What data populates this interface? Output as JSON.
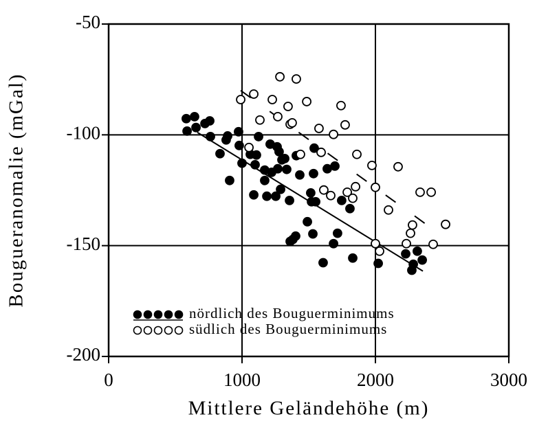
{
  "chart_data": {
    "type": "scatter",
    "x_label": "Mittlere Geländehöhe (m)",
    "y_label": "Bougueranomalie (mGal)",
    "xlim": [
      0,
      3000
    ],
    "xticks": [
      0,
      1000,
      2000,
      3000
    ],
    "ylim": [
      -200,
      -50
    ],
    "yticks": [
      -200,
      -150,
      -100,
      -50
    ],
    "grid": true,
    "legend": "lower left",
    "series": [
      {
        "name": "nördlich des Bouguerminimums",
        "color": "#000000",
        "marker": "filled",
        "x": [
          582,
          644,
          588,
          655,
          722,
          758,
          763,
          835,
          881,
          892,
          907,
          974,
          979,
          1000,
          1062,
          1088,
          1098,
          1108,
          1124,
          1170,
          1170,
          1186,
          1211,
          1222,
          1253,
          1278,
          1268,
          1289,
          1263,
          1299,
          1320,
          1335,
          1356,
          1361,
          1381,
          1402,
          1407,
          1490,
          1515,
          1531,
          1521,
          1541,
          1552,
          1608,
          1639,
          1686,
          1696,
          1716,
          1747,
          1809,
          1830,
          2021,
          2227,
          2273,
          2284,
          2314,
          2351,
          1433,
          1536
        ],
        "values": [
          -92.7,
          -91.8,
          -98.3,
          -96.7,
          -94.9,
          -93.7,
          -100.8,
          -108.5,
          -102.3,
          -100.5,
          -120.6,
          -98.6,
          -104.8,
          -112.8,
          -108.8,
          -127.1,
          -113.5,
          -109.1,
          -100.8,
          -120.6,
          -115.9,
          -127.7,
          -104.2,
          -116.9,
          -127.7,
          -107.6,
          -115.3,
          -124.6,
          -105.4,
          -111.3,
          -110.7,
          -115.6,
          -129.6,
          -148.1,
          -147.2,
          -145.7,
          -109.4,
          -139.2,
          -126.2,
          -144.7,
          -130.2,
          -106.0,
          -130.2,
          -157.7,
          -115.3,
          -149.1,
          -114.1,
          -144.4,
          -129.6,
          -133.3,
          -155.6,
          -158.0,
          -153.7,
          -161.1,
          -158.4,
          -152.5,
          -156.5,
          -118.1,
          -117.5
        ]
      },
      {
        "name": "südlich des Bouguerminimums",
        "color": "#000000",
        "marker": "open",
        "x": [
          990,
          1088,
          1134,
          1052,
          1227,
          1284,
          1407,
          1268,
          1345,
          1361,
          1376,
          1485,
          1438,
          1577,
          1593,
          1686,
          1742,
          1773,
          1861,
          1613,
          1665,
          1789,
          1830,
          1851,
          1974,
          2000,
          2098,
          2170,
          2000,
          2031,
          2232,
          2263,
          2278,
          2335,
          2418,
          2433,
          2526
        ],
        "values": [
          -84.1,
          -81.6,
          -93.3,
          -105.7,
          -84.1,
          -73.8,
          -74.8,
          -91.8,
          -87.2,
          -95.2,
          -94.6,
          -85.0,
          -108.8,
          -97.1,
          -107.9,
          -99.8,
          -86.8,
          -95.5,
          -108.8,
          -124.9,
          -127.4,
          -125.9,
          -128.6,
          -123.4,
          -113.8,
          -123.7,
          -133.9,
          -114.4,
          -149.1,
          -152.5,
          -149.1,
          -144.4,
          -140.7,
          -125.9,
          -125.9,
          -149.4,
          -140.4
        ]
      }
    ],
    "lines": [
      {
        "style": "solid",
        "x": [
          665,
          2356
        ],
        "values": [
          -98.9,
          -161.5
        ]
      },
      {
        "style": "dashed",
        "x": [
          990,
          2510
        ],
        "values": [
          -80,
          -146
        ]
      }
    ]
  }
}
